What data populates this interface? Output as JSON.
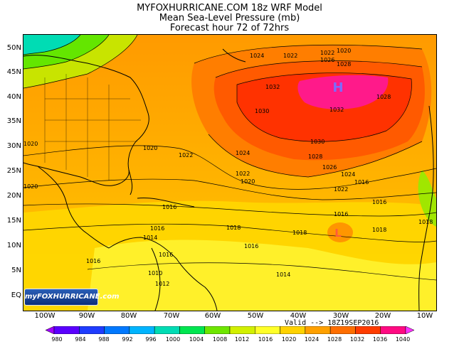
{
  "title": {
    "line1": "MYFOXHURRICANE.COM 18z WRF Model",
    "line2": "Mean Sea-Level Pressure (mb)",
    "line3": "Forecast hour 72 of 72hrs"
  },
  "lat_labels": [
    "50N",
    "45N",
    "40N",
    "35N",
    "30N",
    "25N",
    "20N",
    "15N",
    "10N",
    "5N",
    "EQ"
  ],
  "lon_labels": [
    "100W",
    "90W",
    "80W",
    "70W",
    "60W",
    "50W",
    "40W",
    "30W",
    "20W",
    "10W"
  ],
  "valid_text": "Valid --> 18Z19SEP2016",
  "logo_text": "myFOXHURRICANE.com",
  "pressure_centers": [
    {
      "label": "H",
      "color": "#7b6cff"
    },
    {
      "label": "L",
      "color": "#ff5a3a"
    }
  ],
  "contour_labels": [
    "1024",
    "1022",
    "1020",
    "1022",
    "1026",
    "1028",
    "1028",
    "1032",
    "1032",
    "1030",
    "1030",
    "1028",
    "1026",
    "1024",
    "1024",
    "1022",
    "1022",
    "1020",
    "1020",
    "1022",
    "1018",
    "1018",
    "1018",
    "1016",
    "1016",
    "1016",
    "1016",
    "1016",
    "1018",
    "1016",
    "1014",
    "1014",
    "1016",
    "1020",
    "1020",
    "1016",
    "1010",
    "1012"
  ],
  "colorbar": {
    "ticks": [
      "980",
      "984",
      "988",
      "992",
      "996",
      "1000",
      "1004",
      "1008",
      "1012",
      "1016",
      "1020",
      "1024",
      "1028",
      "1032",
      "1036",
      "1040"
    ],
    "colors": [
      "#a000ff",
      "#5a00ff",
      "#1e3cff",
      "#0078ff",
      "#00b4ff",
      "#00dcb4",
      "#00e650",
      "#6ee600",
      "#d2f000",
      "#ffff28",
      "#ffd200",
      "#ffa000",
      "#ff6e00",
      "#ff3c00",
      "#ff0a82",
      "#ff32ff"
    ]
  }
}
